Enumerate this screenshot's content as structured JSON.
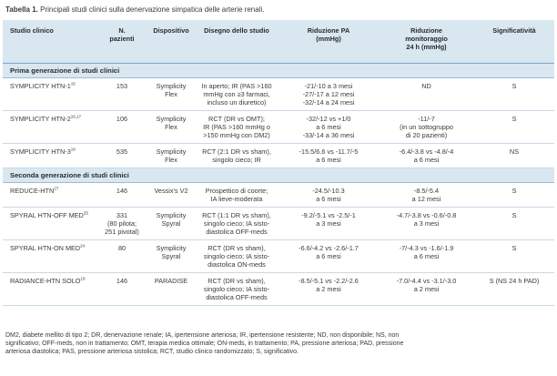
{
  "caption": {
    "label": "Tabella 1.",
    "text": "Principali studi clinici sulla denervazione simpatica delle arterie renali."
  },
  "headers": {
    "study": "Studio clinico",
    "patients": [
      "N.",
      "pazienti"
    ],
    "device": "Dispositivo",
    "design": "Disegno dello studio",
    "bp": [
      "Riduzione PA",
      "(mmHg)"
    ],
    "monitoring": [
      "Riduzione",
      "monitoraggio",
      "24 h (mmHg)"
    ],
    "significance": "Significatività"
  },
  "sections": [
    {
      "title": "Prima generazione di studi clinici",
      "rows": [
        {
          "study": "SYMPLICITY HTN-1",
          "ref": "15",
          "patients": [
            "153"
          ],
          "device": [
            "Symplicity",
            "Flex"
          ],
          "design": [
            "In aperto; IR (PAS >160",
            "mmHg con ≥3 farmaci,",
            "incluso un diuretico)"
          ],
          "bp": [
            "-21/-10 a 3 mesi",
            "-27/-17 a 12 mesi",
            "-32/-14 a 24 mesi"
          ],
          "monitoring": [
            "ND"
          ],
          "significance": "S"
        },
        {
          "study": "SYMPLICITY HTN-2",
          "ref": "16,17",
          "patients": [
            "106"
          ],
          "device": [
            "Symplicity",
            "Flex"
          ],
          "design": [
            "RCT (DR vs OMT);",
            "IR (PAS >160 mmHg o",
            ">150 mmHg con DM2)"
          ],
          "bp": [
            "-32/-12 vs +1/0",
            "a 6 mesi",
            "-33/-14 a 36 mesi"
          ],
          "monitoring": [
            "-11/-7",
            "(in un sottogruppo",
            "di 20 pazienti)"
          ],
          "significance": "S"
        },
        {
          "study": "SYMPLICITY HTN-3",
          "ref": "18",
          "patients": [
            "535"
          ],
          "device": [
            "Symplicity",
            "Flex"
          ],
          "design": [
            "RCT (2:1 DR vs sham),",
            "singolo cieco; IR"
          ],
          "bp": [
            "-15.5/6.6 vs -11.7/-5",
            "a 6 mesi"
          ],
          "monitoring": [
            "-6.4/-3.8 vs -4.8/-4",
            "a 6 mesi"
          ],
          "significance": "NS"
        }
      ]
    },
    {
      "title": "Seconda generazione di studi clinici",
      "rows": [
        {
          "study": "REDUCE-HTN",
          "ref": "27",
          "patients": [
            "146"
          ],
          "device": [
            "Vessix's V2"
          ],
          "design": [
            "Prospettico di coorte;",
            "IA lieve-moderata"
          ],
          "bp": [
            "-24.5/-10.3",
            "a 6 mesi"
          ],
          "monitoring": [
            "-8.5/-5.4",
            "a 12 mesi"
          ],
          "significance": "S"
        },
        {
          "study": "SPYRAL HTN-OFF MED",
          "ref": "25",
          "patients": [
            "331",
            "(80 pilota;",
            "251 pivotal)"
          ],
          "device": [
            "Symplicity",
            "Spyral"
          ],
          "design": [
            "RCT (1:1 DR vs sham),",
            "singolo cieco; IA sisto-",
            "diastolica OFF-meds"
          ],
          "bp": [
            "-9.2/-5.1 vs -2.5/-1",
            "a 3 mesi"
          ],
          "monitoring": [
            "-4.7/-3.8 vs -0.6/-0.8",
            "a 3 mesi"
          ],
          "significance": "S"
        },
        {
          "study": "SPYRAL HTN-ON MED",
          "ref": "24",
          "patients": [
            "80"
          ],
          "device": [
            "Symplicity",
            "Spyral"
          ],
          "design": [
            "RCT (DR vs sham),",
            "singolo cieco; IA sisto-",
            "diastolica ON-meds"
          ],
          "bp": [
            "-6.6/-4.2 vs -2.6/-1.7",
            "a 6 mesi"
          ],
          "monitoring": [
            "-7/-4.3 vs -1.6/-1.9",
            "a 6 mesi"
          ],
          "significance": "S"
        },
        {
          "study": "RADIANCE-HTN SOLO",
          "ref": "19",
          "patients": [
            "146"
          ],
          "device": [
            "PARADISE"
          ],
          "design": [
            "RCT (DR vs sham),",
            "singolo cieco; IA sisto-",
            "diastolica OFF-meds"
          ],
          "bp": [
            "-8.5/-5.1 vs -2.2/-2.6",
            "a 2 mesi"
          ],
          "monitoring": [
            "-7.0/-4.4 vs -3.1/-3.0",
            "a 2 mesi"
          ],
          "significance": "S (NS 24 h PAD)"
        }
      ]
    }
  ],
  "footnote": [
    "DM2, diabete mellito di tipo 2; DR, denervazione renale; IA, ipertensione arteriosa; IR, ipertensione resistente; ND, non disponibile; NS, non",
    "significativo; OFF-meds, non in trattamento; OMT, terapia medica ottimale; ON-meds, in trattamento; PA, pressione arteriosa; PAD, pressione",
    "arteriosa diastolica; PAS, pressione arteriosa sistolica; RCT, studio clinico randomizzato; S, significativo."
  ]
}
